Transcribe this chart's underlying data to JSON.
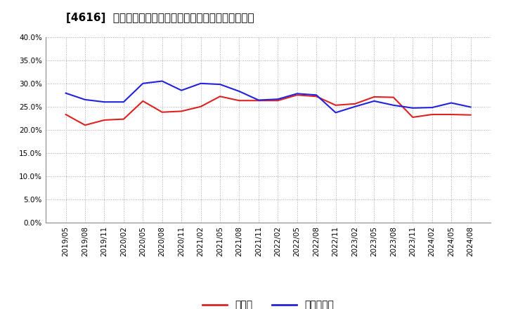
{
  "title": "[4616]  現預金、有利子負債の総資産に対する比率の推移",
  "x_labels": [
    "2019/05",
    "2019/08",
    "2019/11",
    "2020/02",
    "2020/05",
    "2020/08",
    "2020/11",
    "2021/02",
    "2021/05",
    "2021/08",
    "2021/11",
    "2022/02",
    "2022/05",
    "2022/08",
    "2022/11",
    "2023/02",
    "2023/05",
    "2023/08",
    "2023/11",
    "2024/02",
    "2024/05",
    "2024/08"
  ],
  "cash": [
    0.233,
    0.21,
    0.221,
    0.223,
    0.262,
    0.238,
    0.24,
    0.25,
    0.272,
    0.263,
    0.263,
    0.263,
    0.275,
    0.272,
    0.253,
    0.256,
    0.271,
    0.27,
    0.227,
    0.233,
    0.233,
    0.232
  ],
  "debt": [
    0.279,
    0.265,
    0.26,
    0.26,
    0.3,
    0.305,
    0.285,
    0.3,
    0.298,
    0.283,
    0.264,
    0.266,
    0.278,
    0.275,
    0.237,
    0.25,
    0.262,
    0.253,
    0.247,
    0.248,
    0.258,
    0.249
  ],
  "cash_color": "#dd2222",
  "debt_color": "#2222dd",
  "legend_cash": "現預金",
  "legend_debt": "有利子負債",
  "ylim": [
    0.0,
    0.4
  ],
  "yticks": [
    0.0,
    0.05,
    0.1,
    0.15,
    0.2,
    0.25,
    0.3,
    0.35,
    0.4
  ],
  "background_color": "#ffffff",
  "grid_color": "#aaaaaa",
  "title_fontsize": 11,
  "axis_fontsize": 7.5,
  "legend_fontsize": 10
}
